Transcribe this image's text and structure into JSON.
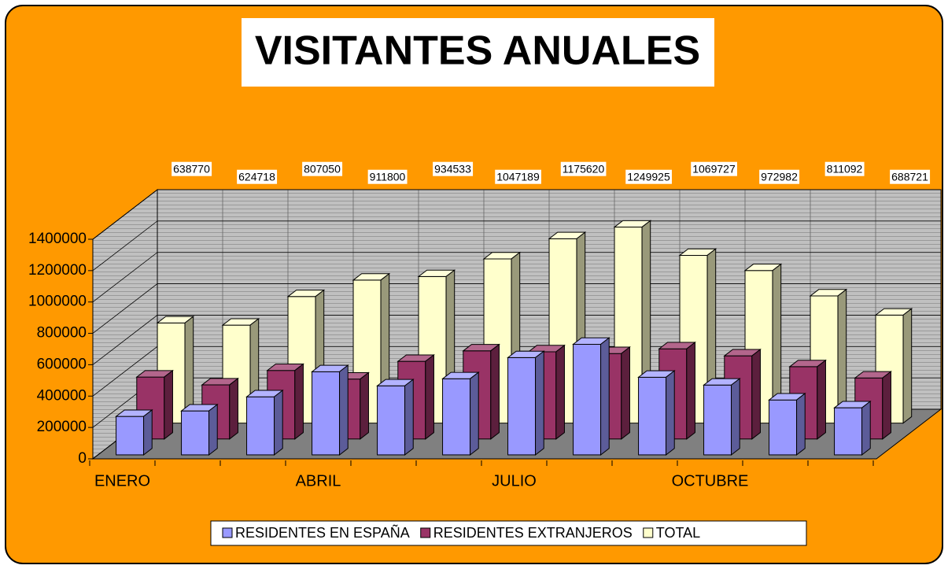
{
  "chart_data": {
    "type": "bar3d",
    "title": "VISITANTES  ANUALES",
    "categories": [
      "ENERO",
      null,
      null,
      "ABRIL",
      null,
      null,
      "JULIO",
      null,
      null,
      "OCTUBRE",
      null,
      null
    ],
    "series": [
      {
        "name": "RESIDENTES EN ESPAÑA",
        "color": "#9999ff",
        "values": [
          245000,
          280000,
          370000,
          530000,
          440000,
          485000,
          620000,
          705000,
          495000,
          445000,
          350000,
          300000
        ]
      },
      {
        "name": "RESIDENTES EXTRANJEROS",
        "color": "#993366",
        "values": [
          395000,
          345000,
          437000,
          382000,
          495000,
          562000,
          556000,
          545000,
          575000,
          530000,
          461000,
          389000
        ]
      },
      {
        "name": "TOTAL",
        "color": "#ffffcc",
        "values": [
          638770,
          624718,
          807050,
          911800,
          934533,
          1047189,
          1175620,
          1249925,
          1069727,
          972982,
          811092,
          688721
        ],
        "data_labels": true
      }
    ],
    "ylim": [
      0,
      1400000
    ],
    "yticks": [
      0,
      200000,
      400000,
      600000,
      800000,
      1000000,
      1200000,
      1400000
    ],
    "grid": true,
    "legend": "bottom"
  }
}
